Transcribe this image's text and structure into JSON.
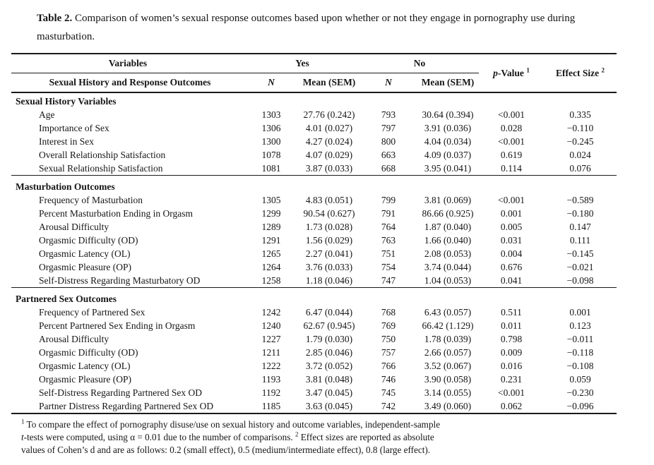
{
  "caption": {
    "label": "Table 2.",
    "text": " Comparison of women’s sexual response outcomes based upon whether or not they engage in pornography use during masturbation."
  },
  "header": {
    "variables": "Variables",
    "yes": "Yes",
    "no": "No",
    "p_italic": "p",
    "p_rest": "-Value",
    "p_sup": "1",
    "effect": "Effect Size",
    "effect_sup": "2",
    "row2_label": "Sexual History and Response Outcomes",
    "n": "N",
    "mean_sem": "Mean (SEM)"
  },
  "sections": [
    {
      "title": "Sexual History Variables",
      "rows": [
        {
          "label": "Age",
          "n_yes": "1303",
          "mean_yes": "27.76 (0.242)",
          "n_no": "793",
          "mean_no": "30.64 (0.394)",
          "p": "<0.001",
          "effect": "0.335"
        },
        {
          "label": "Importance of Sex",
          "n_yes": "1306",
          "mean_yes": "4.01 (0.027)",
          "n_no": "797",
          "mean_no": "3.91 (0.036)",
          "p": "0.028",
          "effect": "−0.110"
        },
        {
          "label": "Interest in Sex",
          "n_yes": "1300",
          "mean_yes": "4.27 (0.024)",
          "n_no": "800",
          "mean_no": "4.04 (0.034)",
          "p": "<0.001",
          "effect": "−0.245"
        },
        {
          "label": "Overall Relationship Satisfaction",
          "n_yes": "1078",
          "mean_yes": "4.07 (0.029)",
          "n_no": "663",
          "mean_no": "4.09 (0.037)",
          "p": "0.619",
          "effect": "0.024"
        },
        {
          "label": "Sexual Relationship Satisfaction",
          "n_yes": "1081",
          "mean_yes": "3.87 (0.033)",
          "n_no": "668",
          "mean_no": "3.95 (0.041)",
          "p": "0.114",
          "effect": "0.076"
        }
      ]
    },
    {
      "title": "Masturbation Outcomes",
      "rows": [
        {
          "label": "Frequency of Masturbation",
          "n_yes": "1305",
          "mean_yes": "4.83 (0.051)",
          "n_no": "799",
          "mean_no": "3.81 (0.069)",
          "p": "<0.001",
          "effect": "−0.589"
        },
        {
          "label": "Percent Masturbation Ending in Orgasm",
          "n_yes": "1299",
          "mean_yes": "90.54 (0.627)",
          "n_no": "791",
          "mean_no": "86.66 (0.925)",
          "p": "0.001",
          "effect": "−0.180"
        },
        {
          "label": "Arousal Difficulty",
          "n_yes": "1289",
          "mean_yes": "1.73 (0.028)",
          "n_no": "764",
          "mean_no": "1.87 (0.040)",
          "p": "0.005",
          "effect": "0.147"
        },
        {
          "label": "Orgasmic Difficulty (OD)",
          "n_yes": "1291",
          "mean_yes": "1.56 (0.029)",
          "n_no": "763",
          "mean_no": "1.66 (0.040)",
          "p": "0.031",
          "effect": "0.111"
        },
        {
          "label": "Orgasmic Latency (OL)",
          "n_yes": "1265",
          "mean_yes": "2.27 (0.041)",
          "n_no": "751",
          "mean_no": "2.08 (0.053)",
          "p": "0.004",
          "effect": "−0.145"
        },
        {
          "label": "Orgasmic Pleasure (OP)",
          "n_yes": "1264",
          "mean_yes": "3.76 (0.033)",
          "n_no": "754",
          "mean_no": "3.74 (0.044)",
          "p": "0.676",
          "effect": "−0.021"
        },
        {
          "label": "Self-Distress Regarding Masturbatory OD",
          "n_yes": "1258",
          "mean_yes": "1.18 (0.046)",
          "n_no": "747",
          "mean_no": "1.04 (0.053)",
          "p": "0.041",
          "effect": "−0.098"
        }
      ]
    },
    {
      "title": "Partnered Sex Outcomes",
      "rows": [
        {
          "label": "Frequency of Partnered Sex",
          "n_yes": "1242",
          "mean_yes": "6.47 (0.044)",
          "n_no": "768",
          "mean_no": "6.43 (0.057)",
          "p": "0.511",
          "effect": "0.001"
        },
        {
          "label": "Percent Partnered Sex Ending in Orgasm",
          "n_yes": "1240",
          "mean_yes": "62.67 (0.945)",
          "n_no": "769",
          "mean_no": "66.42 (1.129)",
          "p": "0.011",
          "effect": "0.123"
        },
        {
          "label": "Arousal Difficulty",
          "n_yes": "1227",
          "mean_yes": "1.79 (0.030)",
          "n_no": "750",
          "mean_no": "1.78 (0.039)",
          "p": "0.798",
          "effect": "−0.011"
        },
        {
          "label": "Orgasmic Difficulty (OD)",
          "n_yes": "1211",
          "mean_yes": "2.85 (0.046)",
          "n_no": "757",
          "mean_no": "2.66 (0.057)",
          "p": "0.009",
          "effect": "−0.118"
        },
        {
          "label": "Orgasmic Latency (OL)",
          "n_yes": "1222",
          "mean_yes": "3.72 (0.052)",
          "n_no": "766",
          "mean_no": "3.52 (0.067)",
          "p": "0.016",
          "effect": "−0.108"
        },
        {
          "label": "Orgasmic Pleasure (OP)",
          "n_yes": "1193",
          "mean_yes": "3.81 (0.048)",
          "n_no": "746",
          "mean_no": "3.90 (0.058)",
          "p": "0.231",
          "effect": "0.059"
        },
        {
          "label": "Self-Distress Regarding Partnered Sex OD",
          "n_yes": "1192",
          "mean_yes": "3.47 (0.045)",
          "n_no": "745",
          "mean_no": "3.14 (0.055)",
          "p": "<0.001",
          "effect": "−0.230"
        },
        {
          "label": "Partner Distress Regarding Partnered Sex OD",
          "n_yes": "1185",
          "mean_yes": "3.63 (0.045)",
          "n_no": "742",
          "mean_no": "3.49 (0.060)",
          "p": "0.062",
          "effect": "−0.096"
        }
      ]
    }
  ],
  "footnote": {
    "sup1": "1",
    "line1": " To compare the effect of pornography disuse/use on sexual history and outcome variables, independent-sample",
    "line2_italic": "t",
    "line2a": "-tests were computed, using α = 0.01 due to the number of comparisons. ",
    "sup2": "2",
    "line2b": " Effect sizes are reported as absolute",
    "line3": "values of Cohen’s d and are as follows: 0.2 (small effect), 0.5 (medium/intermediate effect), 0.8 (large effect)."
  }
}
